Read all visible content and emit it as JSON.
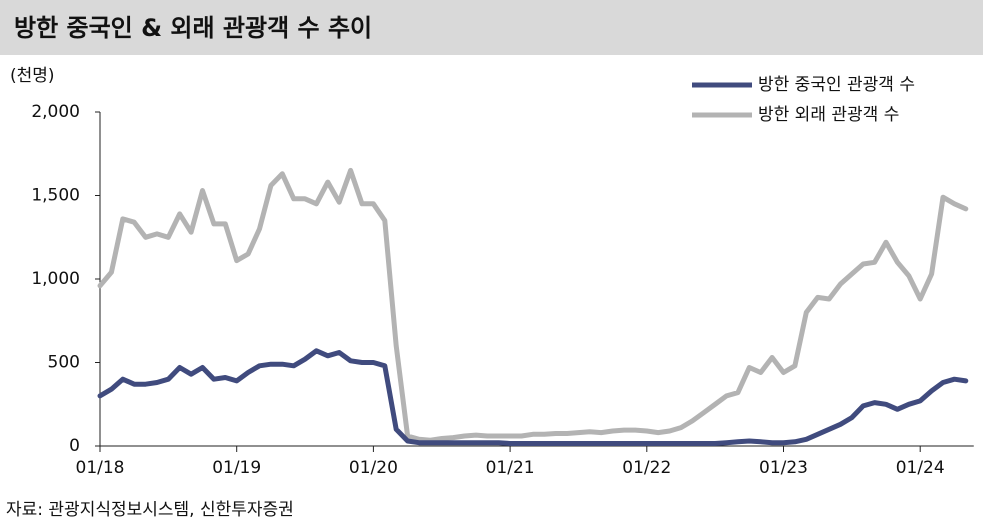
{
  "chart_data": {
    "type": "line",
    "title": "방한 중국인 & 외래 관광객 수 추이",
    "y_unit": "(천명)",
    "source": "자료: 관광지식정보시스템, 신한투자증권",
    "x": [
      "01/18",
      "02/18",
      "03/18",
      "04/18",
      "05/18",
      "06/18",
      "07/18",
      "08/18",
      "09/18",
      "10/18",
      "11/18",
      "12/18",
      "01/19",
      "02/19",
      "03/19",
      "04/19",
      "05/19",
      "06/19",
      "07/19",
      "08/19",
      "09/19",
      "10/19",
      "11/19",
      "12/19",
      "01/20",
      "02/20",
      "03/20",
      "04/20",
      "05/20",
      "06/20",
      "07/20",
      "08/20",
      "09/20",
      "10/20",
      "11/20",
      "12/20",
      "01/21",
      "02/21",
      "03/21",
      "04/21",
      "05/21",
      "06/21",
      "07/21",
      "08/21",
      "09/21",
      "10/21",
      "11/21",
      "12/21",
      "01/22",
      "02/22",
      "03/22",
      "04/22",
      "05/22",
      "06/22",
      "07/22",
      "08/22",
      "09/22",
      "10/22",
      "11/22",
      "12/22",
      "01/23",
      "02/23",
      "03/23",
      "04/23",
      "05/23",
      "06/23",
      "07/23",
      "08/23",
      "09/23",
      "10/23",
      "11/23",
      "12/23",
      "01/24",
      "02/24",
      "03/24",
      "04/24",
      "05/24"
    ],
    "xticks": [
      "01/18",
      "01/19",
      "01/20",
      "01/21",
      "01/22",
      "01/23",
      "01/24"
    ],
    "series": [
      {
        "name": "방한 중국인 관광객 수",
        "color": "#404b7e",
        "values": [
          300,
          340,
          400,
          370,
          370,
          380,
          400,
          470,
          430,
          470,
          400,
          410,
          390,
          440,
          480,
          490,
          490,
          480,
          520,
          570,
          540,
          560,
          510,
          500,
          500,
          480,
          100,
          30,
          20,
          20,
          20,
          20,
          20,
          20,
          20,
          20,
          15,
          15,
          15,
          15,
          15,
          15,
          15,
          15,
          15,
          15,
          15,
          15,
          15,
          15,
          15,
          15,
          15,
          15,
          15,
          20,
          25,
          30,
          25,
          20,
          20,
          25,
          40,
          70,
          100,
          130,
          170,
          240,
          260,
          250,
          220,
          250,
          270,
          330,
          380,
          400,
          390
        ]
      },
      {
        "name": "방한 외래 관광객 수",
        "color": "#b3b3b3",
        "values": [
          960,
          1040,
          1360,
          1340,
          1250,
          1270,
          1250,
          1390,
          1280,
          1530,
          1330,
          1330,
          1110,
          1150,
          1300,
          1560,
          1630,
          1480,
          1480,
          1450,
          1580,
          1460,
          1650,
          1450,
          1450,
          1350,
          600,
          60,
          40,
          35,
          45,
          50,
          60,
          65,
          60,
          60,
          60,
          60,
          70,
          70,
          75,
          75,
          80,
          85,
          80,
          90,
          95,
          95,
          90,
          80,
          90,
          110,
          150,
          200,
          250,
          300,
          320,
          470,
          440,
          530,
          440,
          480,
          800,
          890,
          880,
          970,
          1030,
          1090,
          1100,
          1220,
          1100,
          1020,
          880,
          1030,
          1490,
          1450,
          1420
        ]
      }
    ],
    "ylim": [
      0,
      2000
    ],
    "yticks": [
      0,
      500,
      {
        "value": 1000,
        "label": "1,000"
      },
      {
        "value": 1500,
        "label": "1,500"
      },
      {
        "value": 2000,
        "label": "2,000"
      }
    ],
    "legend": "top-right"
  }
}
